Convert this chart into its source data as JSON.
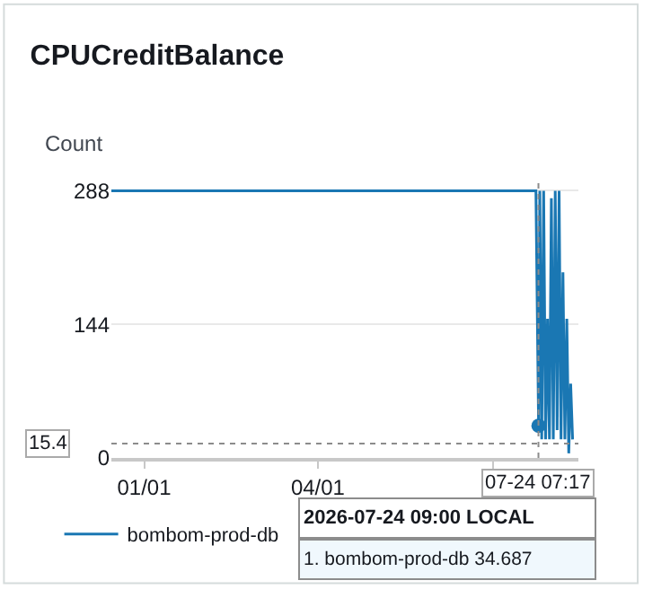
{
  "chart_data": {
    "type": "line",
    "title": "CPUCreditBalance",
    "ylabel": "Count",
    "x": [
      "2025-12-15",
      "2026-07-23",
      "2026-07-24T09:00",
      "2026-07-25",
      "2026-07-26",
      "2026-07-27",
      "2026-07-28",
      "2026-07-29",
      "2026-07-30",
      "2026-07-31",
      "2026-08-01",
      "2026-08-02",
      "2026-08-03",
      "2026-08-04",
      "2026-08-05",
      "2026-08-06",
      "2026-08-07",
      "2026-08-08",
      "2026-08-09",
      "2026-08-10",
      "2026-08-11"
    ],
    "series": [
      {
        "name": "bombom-prod-db",
        "color": "#1a77b3",
        "values": [
          288,
          288,
          34.687,
          288,
          20,
          288,
          20,
          150,
          20,
          280,
          20,
          288,
          30,
          288,
          20,
          200,
          20,
          150,
          5,
          80,
          20
        ]
      },
      {
        "type": "scatter",
        "marker": "circle",
        "color": "#1a77b3",
        "x": [
          "2026-07-24T09:00"
        ],
        "values": [
          34.687
        ]
      }
    ],
    "xlim": [
      "2025-12-15",
      "2026-08-14"
    ],
    "xticks": [
      {
        "value": "2026-01-01",
        "label": "01/01"
      },
      {
        "value": "2026-04-01",
        "label": "04/01"
      },
      {
        "value": "2026-07-01",
        "label": null
      }
    ],
    "ylim": [
      0,
      300
    ],
    "yticks": [
      0,
      144,
      288
    ],
    "grid": "y",
    "legend": "bottom",
    "marker": "none",
    "line_style": "solid",
    "ref_lines": [
      {
        "axis": "y",
        "value": 15.4,
        "label": "15.4",
        "color": "#8c8c8c",
        "line_style": "dotted"
      },
      {
        "axis": "x",
        "value": "2026-07-24T07:17",
        "label": "07-24 07:17",
        "color": "#8c8c8c",
        "line_style": "dotted"
      }
    ],
    "annotations": [
      "2026-07-24 09:00 LOCAL",
      "1. bombom-prod-db 34.687"
    ]
  }
}
